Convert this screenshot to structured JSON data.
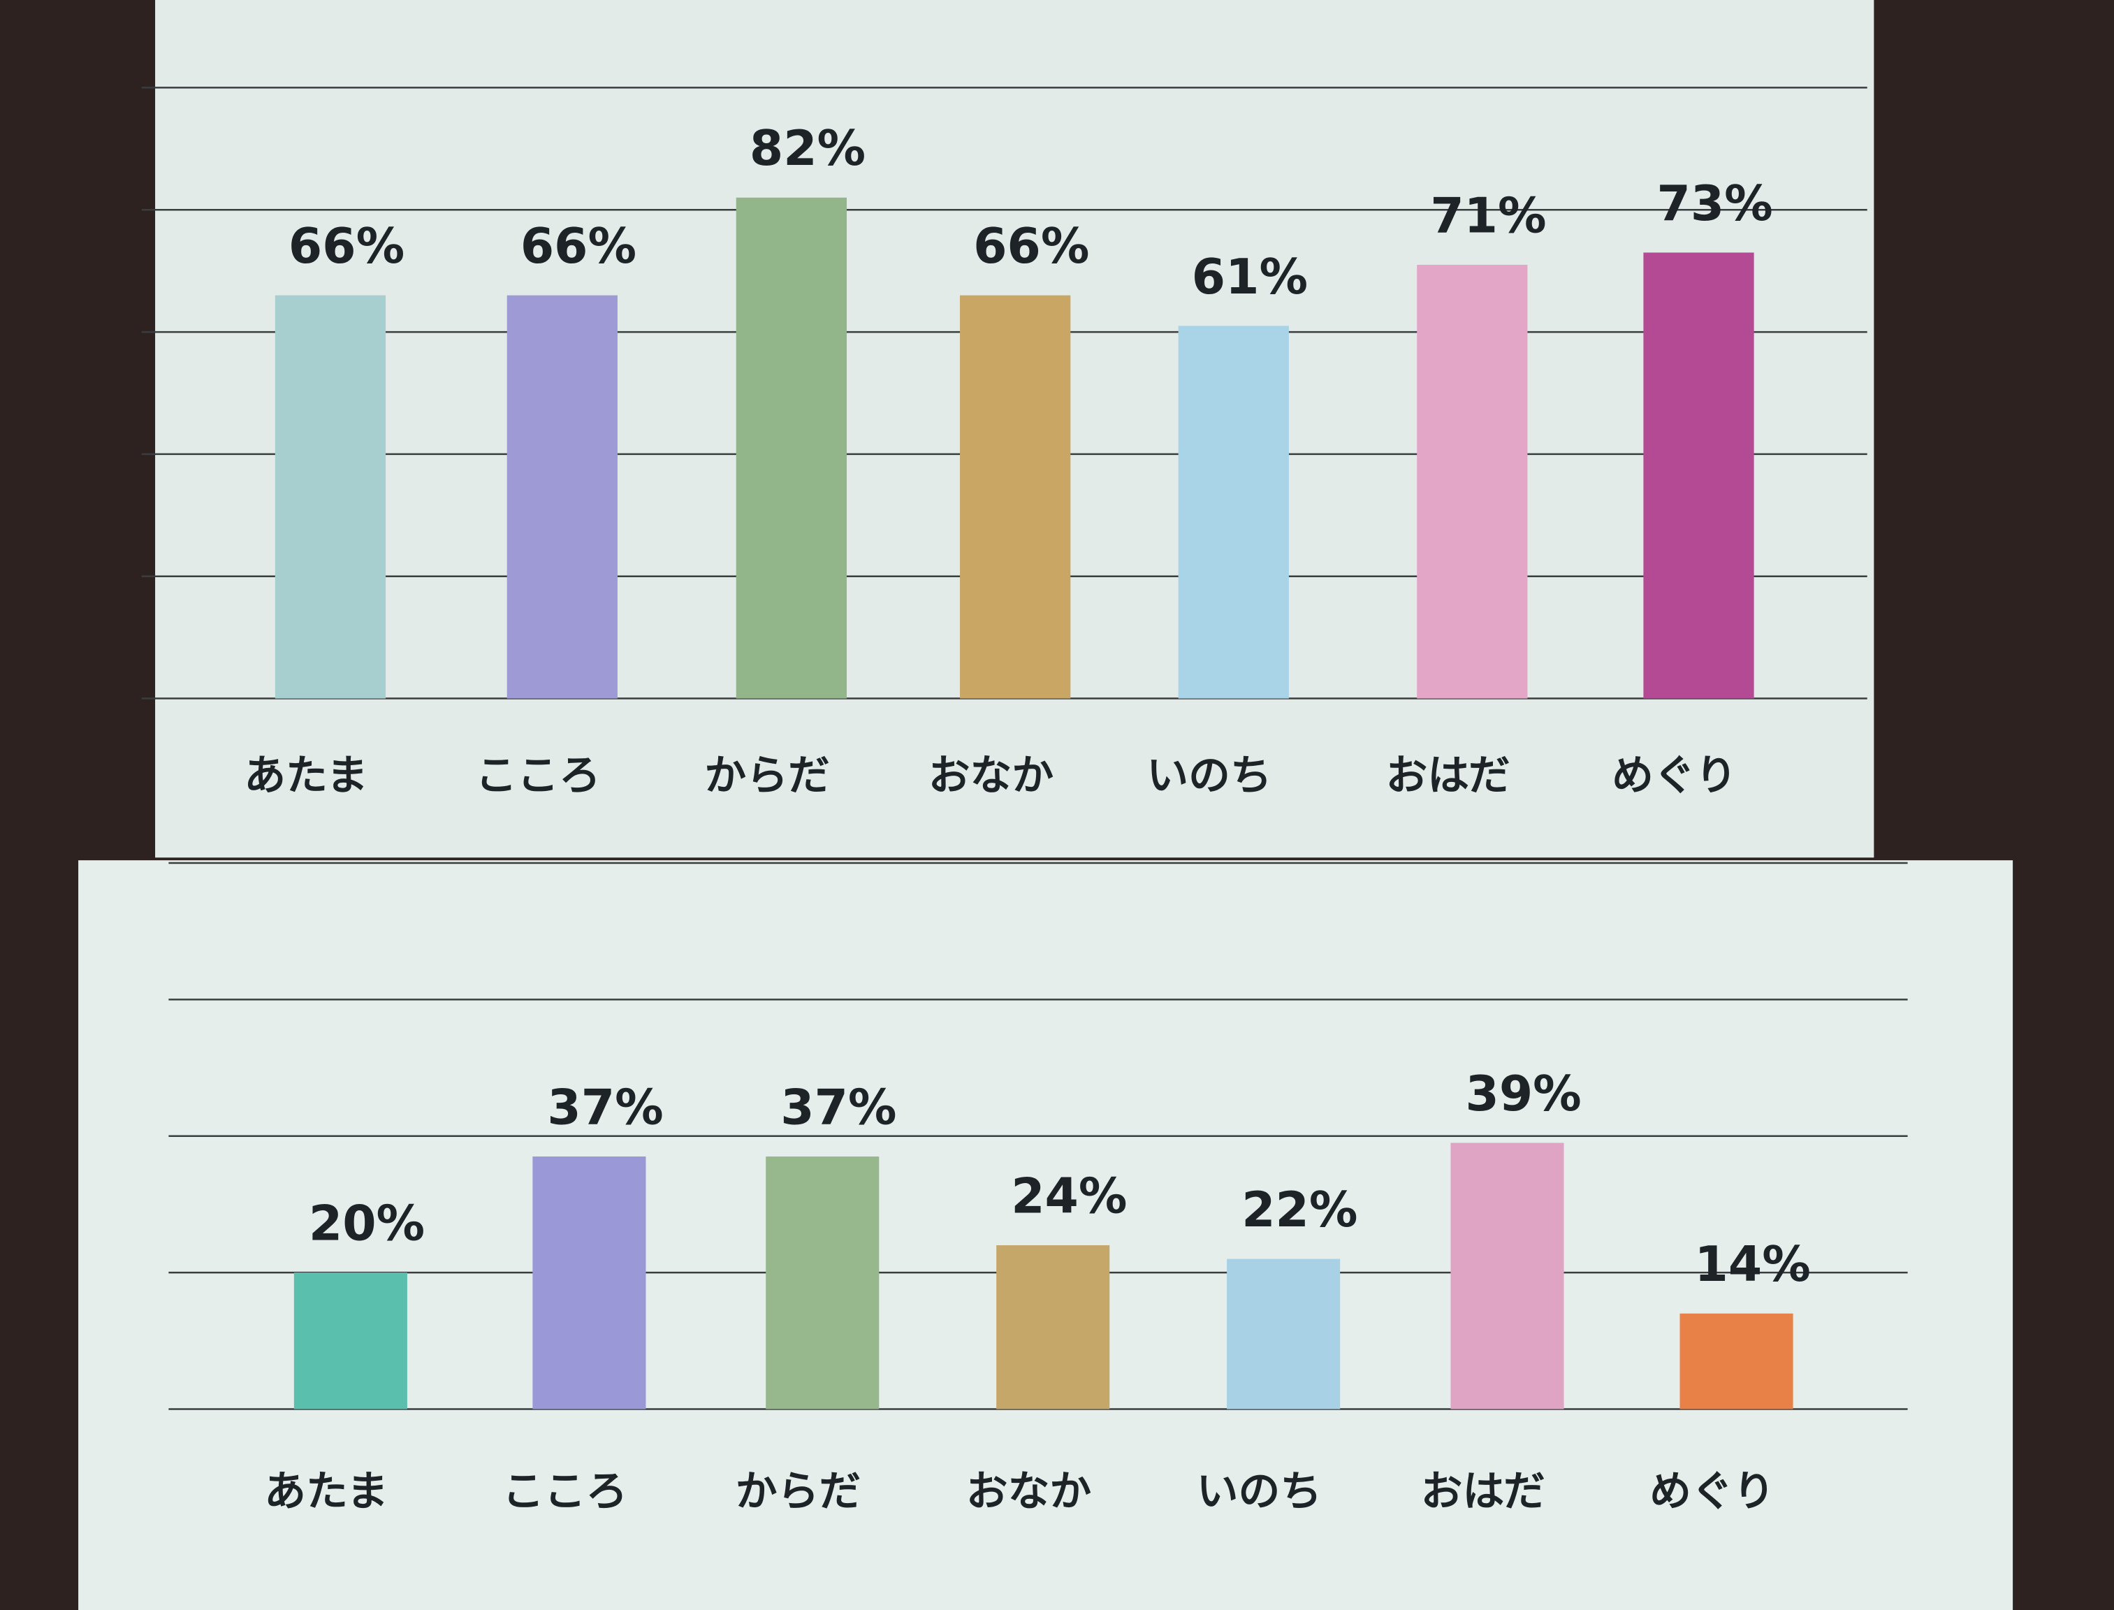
{
  "chart_data": [
    {
      "type": "bar",
      "categories": [
        "あたま",
        "こころ",
        "からだ",
        "おなか",
        "いのち",
        "おはだ",
        "めぐり"
      ],
      "values": [
        66,
        66,
        82,
        66,
        61,
        71,
        73
      ],
      "value_labels": [
        "66%",
        "66%",
        "82%",
        "66%",
        "61%",
        "71%",
        "73%"
      ],
      "colors": [
        "#a8cfd0",
        "#9e9ad6",
        "#93b58a",
        "#c9a664",
        "#a9d4e8",
        "#e3a6c6",
        "#b44a94"
      ],
      "ylim": [
        0,
        100
      ],
      "yticks": [
        0,
        20,
        40,
        60,
        80,
        100
      ],
      "grid": true
    },
    {
      "type": "bar",
      "categories": [
        "あたま",
        "こころ",
        "からだ",
        "おなか",
        "いのち",
        "おはだ",
        "めぐり"
      ],
      "values": [
        20,
        37,
        37,
        24,
        22,
        39,
        14
      ],
      "value_labels": [
        "20%",
        "37%",
        "37%",
        "24%",
        "22%",
        "39%",
        "14%"
      ],
      "colors": [
        "#5bbfae",
        "#9a98d6",
        "#96b88c",
        "#c6a76a",
        "#a9d1e6",
        "#dfa3c4",
        "#e88148"
      ],
      "ylim": [
        0,
        80
      ],
      "yticks": [
        0,
        20,
        40,
        60,
        80
      ],
      "grid": true
    }
  ]
}
